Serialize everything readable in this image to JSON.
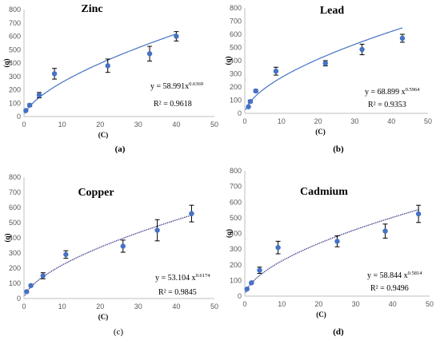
{
  "chart_data": [
    {
      "type": "scatter",
      "title": "Zinc",
      "xlabel": "(C)",
      "ylabel": "(q)",
      "xlim": [
        0,
        50
      ],
      "ylim": [
        0,
        800
      ],
      "xticks": [
        "0",
        "10",
        "20",
        "30",
        "40",
        "50"
      ],
      "yticks": [
        "0",
        "100",
        "200",
        "300",
        "400",
        "500",
        "600",
        "700",
        "800"
      ],
      "x": [
        0.5,
        1.5,
        4,
        8,
        22,
        33,
        40
      ],
      "y": [
        45,
        85,
        160,
        320,
        380,
        470,
        600
      ],
      "err": [
        0,
        10,
        20,
        40,
        50,
        55,
        35
      ],
      "fit": {
        "a": 58.991,
        "b": 0.6369,
        "x_from": 0.2,
        "x_to": 40
      },
      "equation": "y = 58.991x",
      "equation_exp": "0.6369",
      "r2": "R² = 0.9618",
      "sublabel": "(a)",
      "sublabel_bold": true
    },
    {
      "type": "scatter",
      "title": "Lead",
      "xlabel": "(C)",
      "ylabel": "(q)",
      "xlim": [
        0,
        50
      ],
      "ylim": [
        0,
        800
      ],
      "xticks": [
        "0",
        "10",
        "20",
        "30",
        "40",
        "50"
      ],
      "yticks": [
        "0",
        "100",
        "200",
        "300",
        "400",
        "500",
        "600",
        "700",
        "800"
      ],
      "x": [
        1,
        1.5,
        3,
        8.5,
        22,
        32,
        43
      ],
      "y": [
        50,
        90,
        170,
        320,
        380,
        485,
        570
      ],
      "err": [
        0,
        10,
        10,
        30,
        20,
        40,
        30
      ],
      "fit": {
        "a": 68.899,
        "b": 0.5964,
        "x_from": 0.2,
        "x_to": 43
      },
      "equation": "y = 68.899 x",
      "equation_exp": "0.5964",
      "r2": "R² = 0.9353",
      "sublabel": "(b)",
      "sublabel_bold": true
    },
    {
      "type": "scatter",
      "title": "Copper",
      "xlabel": "(C)",
      "ylabel": "(q)",
      "xlim": [
        0,
        50
      ],
      "ylim": [
        0,
        800
      ],
      "xticks": [
        "0",
        "10",
        "20",
        "30",
        "40",
        "50"
      ],
      "yticks": [
        "0",
        "100",
        "200",
        "300",
        "400",
        "500",
        "600",
        "700",
        "800"
      ],
      "x": [
        0.7,
        1.8,
        5,
        11,
        26,
        35,
        44
      ],
      "y": [
        45,
        85,
        150,
        290,
        345,
        450,
        560
      ],
      "err": [
        0,
        5,
        20,
        25,
        40,
        70,
        55
      ],
      "fit": {
        "a": 53.104,
        "b": 0.6174,
        "x_from": 0.2,
        "x_to": 44
      },
      "equation": "y = 53.104 x",
      "equation_exp": "0.6174",
      "r2": "R² = 0.9845",
      "sublabel": "(c)",
      "sublabel_bold": false
    },
    {
      "type": "scatter",
      "title": "Cadmium",
      "xlabel": "(C)",
      "ylabel": "(q)",
      "xlim": [
        0,
        50
      ],
      "ylim": [
        0,
        800
      ],
      "xticks": [
        "0",
        "10",
        "20",
        "30",
        "40",
        "50"
      ],
      "yticks": [
        "0",
        "100",
        "200",
        "300",
        "400",
        "500",
        "600",
        "700",
        "800"
      ],
      "x": [
        0.6,
        1.8,
        4,
        9,
        25,
        38,
        47
      ],
      "y": [
        45,
        85,
        165,
        310,
        350,
        415,
        525
      ],
      "err": [
        0,
        5,
        20,
        40,
        35,
        45,
        55
      ],
      "fit": {
        "a": 58.844,
        "b": 0.5814,
        "x_from": 0.2,
        "x_to": 47
      },
      "equation": "y = 58.844 x",
      "equation_exp": "0.5814",
      "r2": "R² = 0.9496",
      "sublabel": "(d)",
      "sublabel_bold": true
    }
  ],
  "colors": {
    "point": "#4472c4",
    "fit": "#4472c4",
    "fit_dark": "#3a3a8c",
    "axis": "#bfbfbf",
    "tick": "#595959",
    "errorbar": "#000000"
  }
}
